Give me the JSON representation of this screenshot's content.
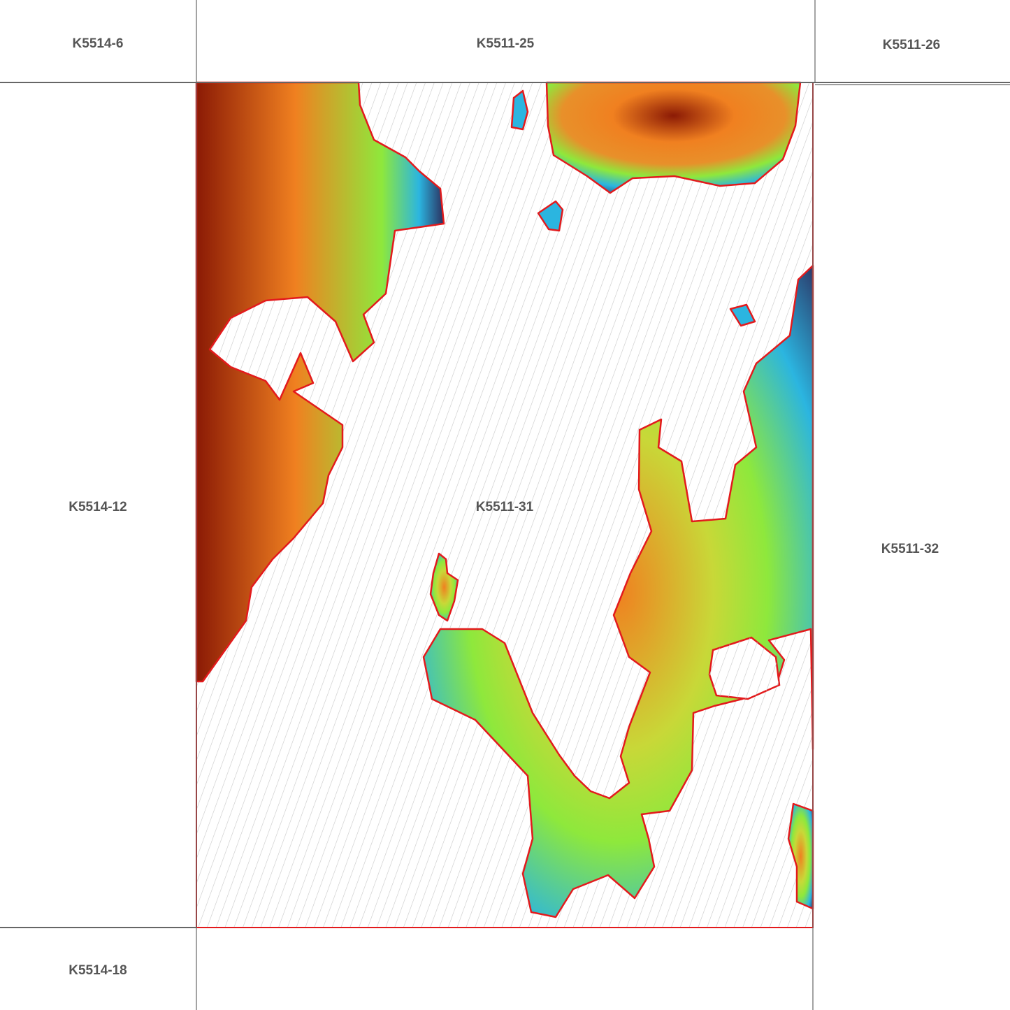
{
  "map": {
    "sheets": [
      {
        "id": "K5514-6"
      },
      {
        "id": "K5511-25"
      },
      {
        "id": "K5511-26"
      },
      {
        "id": "K5514-12"
      },
      {
        "id": "K5511-31"
      },
      {
        "id": "K5511-32"
      },
      {
        "id": "K5514-18"
      }
    ],
    "selected_sheet": "K5511-31",
    "colors": {
      "boundary": "#e31a1c",
      "grid_line": "#666666",
      "hatch": "#c8c8c8",
      "elevation_low": "#2b2f5e",
      "elevation_mid_low": "#2bb5e0",
      "elevation_mid": "#8ee83c",
      "elevation_high": "#f08020",
      "elevation_peak": "#8b1a05"
    },
    "layers": [
      "elevation-raster",
      "no-data-hatch",
      "sheet-grid"
    ]
  }
}
